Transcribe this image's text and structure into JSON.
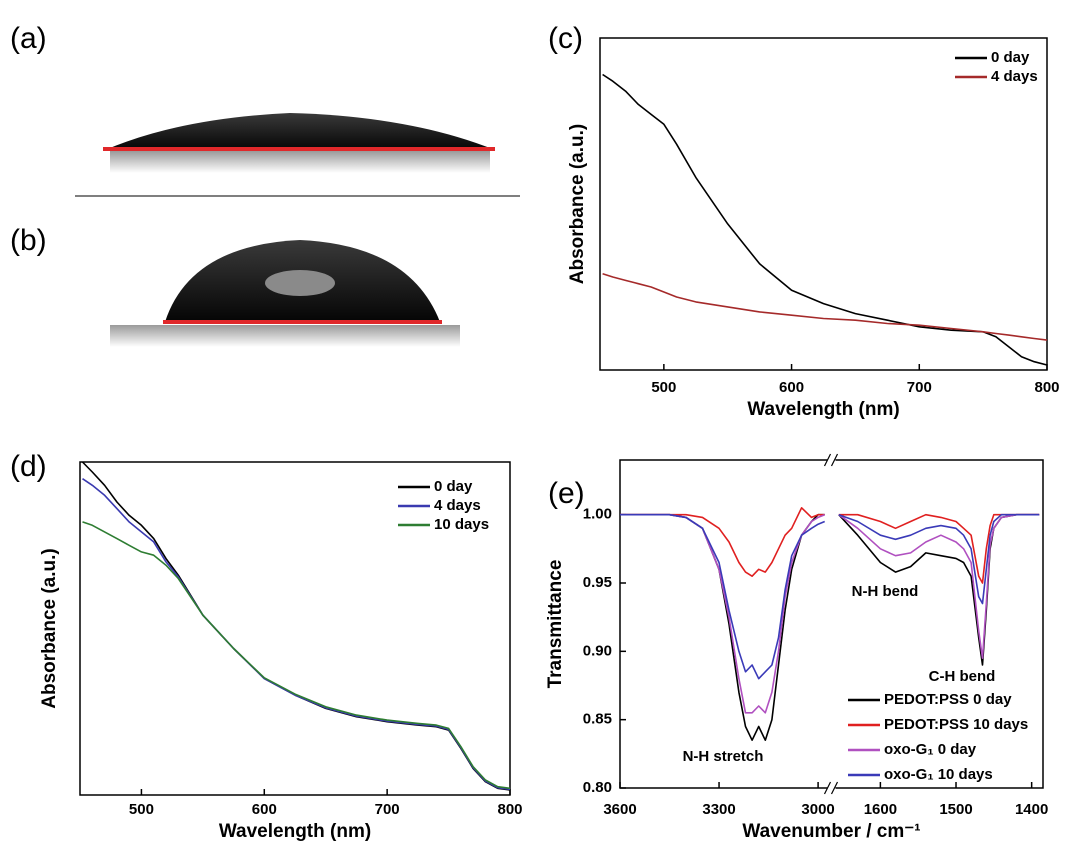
{
  "images": [
    {
      "label": "(a)"
    },
    {
      "label": "(b)"
    }
  ],
  "chart_data": [
    {
      "type": "line",
      "label": "(c)",
      "xlabel": "Wavelength (nm)",
      "ylabel": "Absorbance (a.u.)",
      "xlim": [
        450,
        800
      ],
      "xticks": [
        500,
        600,
        700,
        800
      ],
      "ylim": [
        0,
        100
      ],
      "legend": "upper right",
      "x": [
        452,
        460,
        470,
        480,
        490,
        500,
        510,
        525,
        550,
        575,
        600,
        625,
        650,
        675,
        700,
        725,
        750,
        760,
        770,
        780,
        790,
        800
      ],
      "series": [
        {
          "name": "0 day",
          "color": "#000000",
          "values": [
            89,
            87,
            84,
            80,
            77,
            74,
            68,
            58,
            44,
            32,
            24,
            20,
            17,
            15,
            13,
            12,
            11.5,
            10,
            7,
            4,
            2.5,
            1.5
          ]
        },
        {
          "name": "4 days",
          "color": "#a52a2a",
          "values": [
            29,
            28,
            27,
            26,
            25,
            23.5,
            22,
            20.5,
            19,
            17.5,
            16.5,
            15.5,
            15,
            14,
            13.5,
            12.5,
            11.5,
            11,
            10.5,
            10,
            9.5,
            9
          ]
        }
      ]
    },
    {
      "type": "line",
      "label": "(d)",
      "xlabel": "Wavelength (nm)",
      "ylabel": "Absorbance (a.u.)",
      "xlim": [
        450,
        800
      ],
      "xticks": [
        500,
        600,
        700,
        800
      ],
      "ylim": [
        0,
        100
      ],
      "legend": "upper right",
      "x": [
        452,
        460,
        470,
        480,
        490,
        500,
        510,
        520,
        530,
        550,
        575,
        600,
        625,
        650,
        675,
        700,
        725,
        740,
        750,
        760,
        770,
        780,
        790,
        800
      ],
      "series": [
        {
          "name": "0 day",
          "color": "#000000",
          "values": [
            100,
            97,
            93,
            88,
            84,
            81,
            77,
            71,
            66,
            54,
            44,
            35,
            30,
            26,
            23.5,
            22,
            21,
            20.5,
            19.5,
            14,
            8,
            4,
            2,
            1.5
          ]
        },
        {
          "name": "4 days",
          "color": "#3a3ab0",
          "values": [
            95,
            93,
            90,
            86,
            82,
            79,
            76,
            70,
            65.5,
            54,
            44,
            35,
            30,
            26.2,
            23.7,
            22.2,
            21.2,
            20.7,
            19.7,
            14.2,
            8.2,
            4.2,
            2.2,
            1.7
          ]
        },
        {
          "name": "10 days",
          "color": "#2e7d32",
          "values": [
            82,
            81,
            79,
            77,
            75,
            73,
            72,
            69,
            65,
            54,
            44,
            35.2,
            30.3,
            26.5,
            24,
            22.5,
            21.5,
            21,
            20,
            14.5,
            8.5,
            4.5,
            2.5,
            2
          ]
        }
      ]
    },
    {
      "type": "line",
      "label": "(e)",
      "xlabel": "Wavenumber / cm⁻¹",
      "ylabel": "Transmittance",
      "xlim": [
        [
          3600,
          2970
        ],
        [
          1660,
          1385
        ]
      ],
      "xticks": [
        [
          3600,
          3300,
          3000
        ],
        [
          1600,
          1500,
          1400
        ]
      ],
      "ylim": [
        0.8,
        1.04
      ],
      "yticks": [
        {
          "value": 1.0,
          "label": "1.00"
        },
        {
          "value": 0.95,
          "label": "0.95"
        },
        {
          "value": 0.9,
          "label": "0.90"
        },
        {
          "value": 0.85,
          "label": "0.85"
        },
        {
          "value": 0.8,
          "label": "0.80"
        }
      ],
      "legend": "lower right",
      "annotations": [
        "N-H stretch",
        "N-H bend",
        "C-H bend"
      ],
      "x": [
        3600,
        3500,
        3450,
        3400,
        3350,
        3300,
        3270,
        3240,
        3220,
        3200,
        3180,
        3160,
        3140,
        3120,
        3100,
        3080,
        3050,
        3020,
        3000,
        2980,
        1655,
        1630,
        1600,
        1580,
        1560,
        1540,
        1520,
        1500,
        1490,
        1480,
        1470,
        1465,
        1460,
        1455,
        1450,
        1440,
        1420,
        1400,
        1390
      ],
      "series": [
        {
          "name": "PEDOT:PSS 0 day",
          "color": "#000000",
          "values": [
            1.0,
            1.0,
            1.0,
            0.998,
            0.99,
            0.96,
            0.92,
            0.87,
            0.845,
            0.835,
            0.845,
            0.835,
            0.85,
            0.89,
            0.93,
            0.96,
            0.985,
            0.995,
            1.0,
            1.0,
            1.0,
            0.985,
            0.965,
            0.958,
            0.962,
            0.972,
            0.97,
            0.968,
            0.965,
            0.955,
            0.91,
            0.89,
            0.93,
            0.975,
            0.99,
            0.998,
            1.0,
            1.0,
            1.0
          ]
        },
        {
          "name": "PEDOT:PSS 10 days",
          "color": "#e02020",
          "values": [
            1.0,
            1.0,
            1.0,
            1.0,
            0.998,
            0.99,
            0.98,
            0.965,
            0.958,
            0.955,
            0.96,
            0.958,
            0.965,
            0.975,
            0.985,
            0.99,
            1.005,
            0.998,
            1.0,
            1.0,
            1.0,
            1.0,
            0.995,
            0.99,
            0.995,
            1.0,
            0.998,
            0.995,
            0.99,
            0.985,
            0.955,
            0.95,
            0.975,
            0.992,
            1.0,
            1.0,
            1.0,
            1.0,
            1.0
          ]
        },
        {
          "name": "oxo-G₁ 0 day",
          "color": "#b050c0",
          "values": [
            1.0,
            1.0,
            1.0,
            0.998,
            0.99,
            0.96,
            0.925,
            0.88,
            0.855,
            0.855,
            0.86,
            0.855,
            0.87,
            0.9,
            0.94,
            0.965,
            0.985,
            0.995,
            0.998,
            1.0,
            1.0,
            0.99,
            0.975,
            0.97,
            0.972,
            0.98,
            0.985,
            0.98,
            0.975,
            0.965,
            0.915,
            0.895,
            0.935,
            0.978,
            0.99,
            0.998,
            1.0,
            1.0,
            1.0
          ]
        },
        {
          "name": "oxo-G₁ 10 days",
          "color": "#3a3ab8",
          "values": [
            1.0,
            1.0,
            1.0,
            0.998,
            0.99,
            0.965,
            0.93,
            0.9,
            0.885,
            0.89,
            0.88,
            0.885,
            0.89,
            0.91,
            0.945,
            0.97,
            0.985,
            0.99,
            0.993,
            0.995,
            1.0,
            0.995,
            0.985,
            0.982,
            0.985,
            0.99,
            0.992,
            0.99,
            0.985,
            0.975,
            0.94,
            0.935,
            0.96,
            0.985,
            0.995,
            1.0,
            1.0,
            1.0,
            1.0
          ]
        }
      ]
    }
  ]
}
